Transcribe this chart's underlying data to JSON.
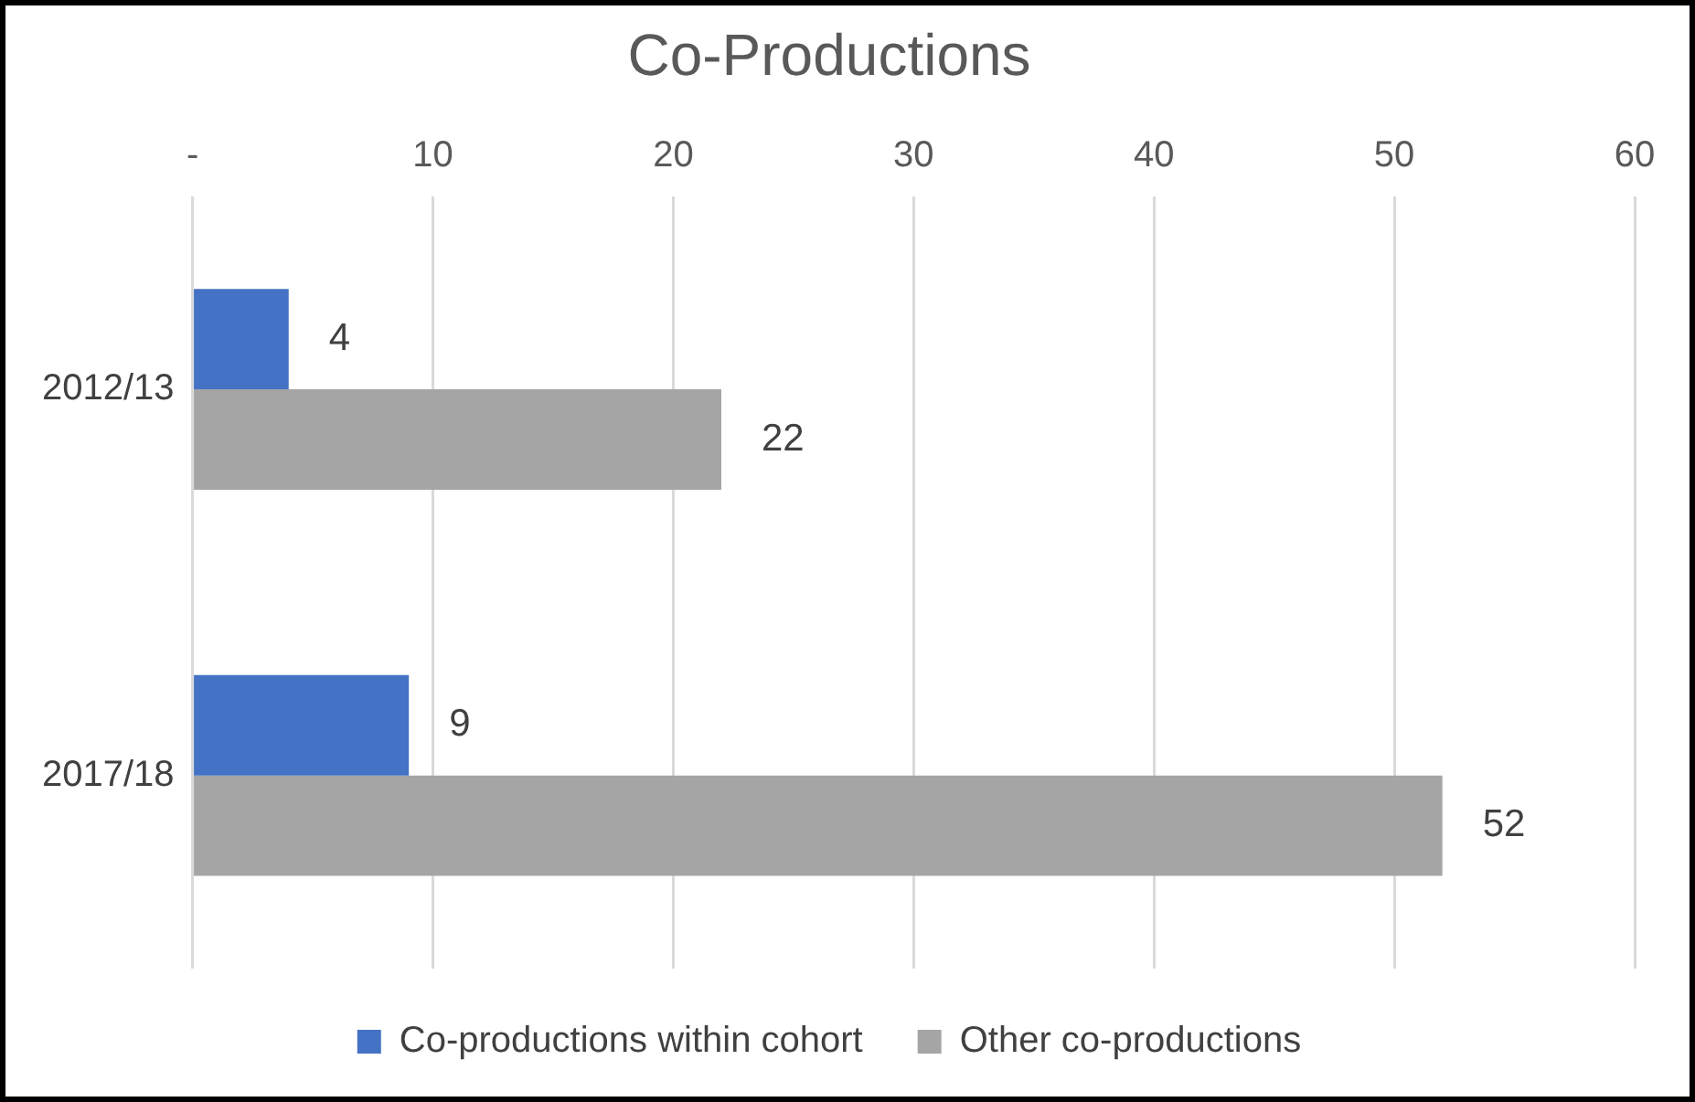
{
  "chart_data": {
    "type": "bar",
    "orientation": "horizontal",
    "title": "Co-Productions",
    "categories": [
      "2012/13",
      "2017/18"
    ],
    "series": [
      {
        "name": "Co-productions within cohort",
        "color": "#4472c4",
        "values": [
          4,
          9
        ]
      },
      {
        "name": "Other co-productions",
        "color": "#a5a5a5",
        "values": [
          22,
          52
        ]
      }
    ],
    "xlim": [
      0,
      60
    ],
    "xticks": [
      {
        "value": 0,
        "label": "-"
      },
      10,
      20,
      30,
      40,
      50,
      60
    ],
    "grid": "x",
    "legend": "bottom",
    "data_labels": true
  }
}
